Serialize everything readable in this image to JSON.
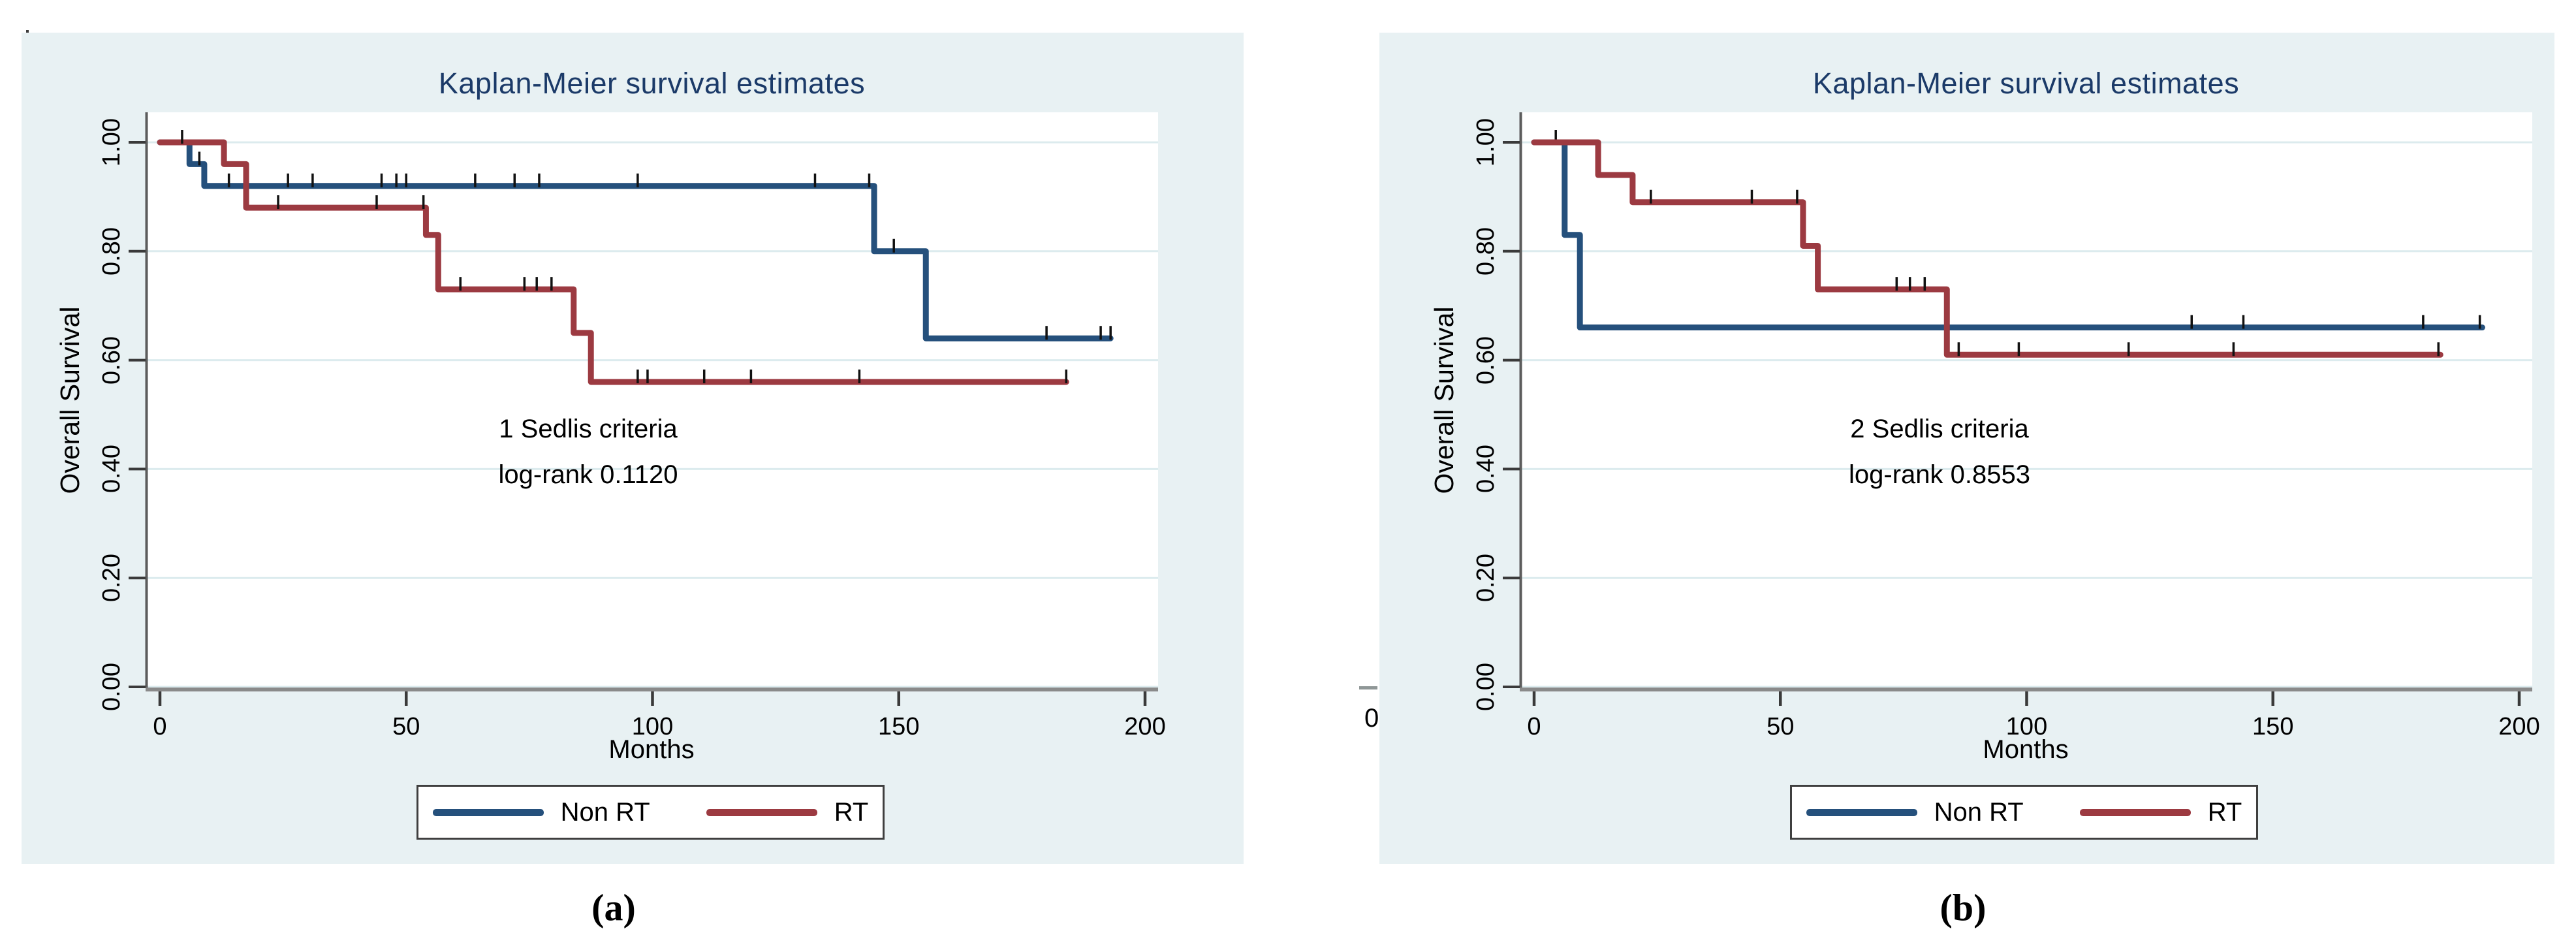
{
  "style": {
    "panel_bg": "#e8f1f3",
    "plot_bg": "#ffffff",
    "grid_color": "#dcebee",
    "axis_line_color": "#8a8a8a",
    "spine_color": "#5c5c5c",
    "tick_color": "#3a3a3a",
    "censor_color": "#111111",
    "title_color": "#1b3a68",
    "navy": "#25507c",
    "maroon": "#9c3a41"
  },
  "panels": [
    {
      "title": "Kaplan-Meier survival estimates",
      "y_axis_label": "Overall Survival",
      "x_axis_label": "Months",
      "annotation": [
        "1 Sedlis criteria",
        "log-rank 0.1120"
      ],
      "sublabel": "(a)",
      "legend": [
        {
          "label": "Non RT"
        },
        {
          "label": "RT"
        }
      ]
    },
    {
      "title": "Kaplan-Meier survival estimates",
      "y_axis_label": "Overall Survival",
      "x_axis_label": "Months",
      "annotation": [
        "2 Sedlis criteria",
        "log-rank 0.8553"
      ],
      "sublabel": "(b)",
      "legend": [
        {
          "label": "Non RT"
        },
        {
          "label": "RT"
        }
      ]
    }
  ],
  "artifacts": {
    "stray_zero": "0"
  },
  "chart_data": [
    {
      "type": "line",
      "subtype": "kaplan-meier-step",
      "title": "Kaplan-Meier survival estimates",
      "xlabel": "Months",
      "ylabel": "Overall Survival",
      "xlim": [
        0,
        200
      ],
      "ylim": [
        0,
        1
      ],
      "x_ticks": [
        0,
        50,
        100,
        150,
        200
      ],
      "y_ticks": [
        "0.00",
        "0.20",
        "0.40",
        "0.60",
        "0.80",
        "1.00"
      ],
      "grid": "horizontal",
      "legend_position": "bottom",
      "annotation": [
        "1 Sedlis criteria",
        "log-rank 0.1120"
      ],
      "series": [
        {
          "name": "Non RT",
          "color": "#25507c",
          "steps": [
            [
              0,
              1.0
            ],
            [
              6,
              0.96
            ],
            [
              9,
              0.92
            ],
            [
              145,
              0.8
            ],
            [
              155.5,
              0.64
            ]
          ],
          "end_x": 193,
          "censors": [
            [
              8,
              0.96
            ],
            [
              14,
              0.92
            ],
            [
              26,
              0.92
            ],
            [
              31,
              0.92
            ],
            [
              45,
              0.92
            ],
            [
              48,
              0.92
            ],
            [
              50,
              0.92
            ],
            [
              64,
              0.92
            ],
            [
              72,
              0.92
            ],
            [
              77,
              0.92
            ],
            [
              97,
              0.92
            ],
            [
              133,
              0.92
            ],
            [
              144,
              0.92
            ],
            [
              149,
              0.8
            ],
            [
              180,
              0.64
            ],
            [
              191,
              0.64
            ],
            [
              193,
              0.64
            ]
          ]
        },
        {
          "name": "RT",
          "color": "#9c3a41",
          "steps": [
            [
              0,
              1.0
            ],
            [
              13,
              0.96
            ],
            [
              17.5,
              0.88
            ],
            [
              54,
              0.83
            ],
            [
              56.5,
              0.73
            ],
            [
              84,
              0.65
            ],
            [
              87.5,
              0.56
            ]
          ],
          "end_x": 184,
          "censors": [
            [
              4.5,
              1.0
            ],
            [
              24,
              0.88
            ],
            [
              44,
              0.88
            ],
            [
              53.5,
              0.88
            ],
            [
              61,
              0.73
            ],
            [
              74,
              0.73
            ],
            [
              76.5,
              0.73
            ],
            [
              79.5,
              0.73
            ],
            [
              97,
              0.56
            ],
            [
              99,
              0.56
            ],
            [
              110.5,
              0.56
            ],
            [
              120,
              0.56
            ],
            [
              142,
              0.56
            ],
            [
              184,
              0.56
            ]
          ]
        }
      ]
    },
    {
      "type": "line",
      "subtype": "kaplan-meier-step",
      "title": "Kaplan-Meier survival estimates",
      "xlabel": "Months",
      "ylabel": "Overall Survival",
      "xlim": [
        0,
        200
      ],
      "ylim": [
        0,
        1
      ],
      "x_ticks": [
        0,
        50,
        100,
        150,
        200
      ],
      "y_ticks": [
        "0.00",
        "0.20",
        "0.40",
        "0.60",
        "0.80",
        "1.00"
      ],
      "grid": "horizontal",
      "legend_position": "bottom",
      "annotation": [
        "2 Sedlis criteria",
        "log-rank 0.8553"
      ],
      "series": [
        {
          "name": "Non RT",
          "color": "#25507c",
          "steps": [
            [
              0,
              1.0
            ],
            [
              6.2,
              0.83
            ],
            [
              9.3,
              0.66
            ]
          ],
          "end_x": 192.5,
          "censors": [
            [
              4.4,
              1.0
            ],
            [
              133.5,
              0.66
            ],
            [
              144,
              0.66
            ],
            [
              180.5,
              0.66
            ],
            [
              192,
              0.66
            ]
          ]
        },
        {
          "name": "RT",
          "color": "#9c3a41",
          "steps": [
            [
              0,
              1.0
            ],
            [
              13,
              0.94
            ],
            [
              20,
              0.89
            ],
            [
              54.6,
              0.81
            ],
            [
              57.6,
              0.73
            ],
            [
              83.8,
              0.61
            ]
          ],
          "end_x": 184,
          "censors": [
            [
              23.7,
              0.89
            ],
            [
              44.2,
              0.89
            ],
            [
              53.4,
              0.89
            ],
            [
              73.6,
              0.73
            ],
            [
              76.3,
              0.73
            ],
            [
              79.3,
              0.73
            ],
            [
              86.2,
              0.61
            ],
            [
              98.4,
              0.61
            ],
            [
              120.7,
              0.61
            ],
            [
              142,
              0.61
            ],
            [
              183.6,
              0.61
            ]
          ]
        }
      ]
    }
  ]
}
